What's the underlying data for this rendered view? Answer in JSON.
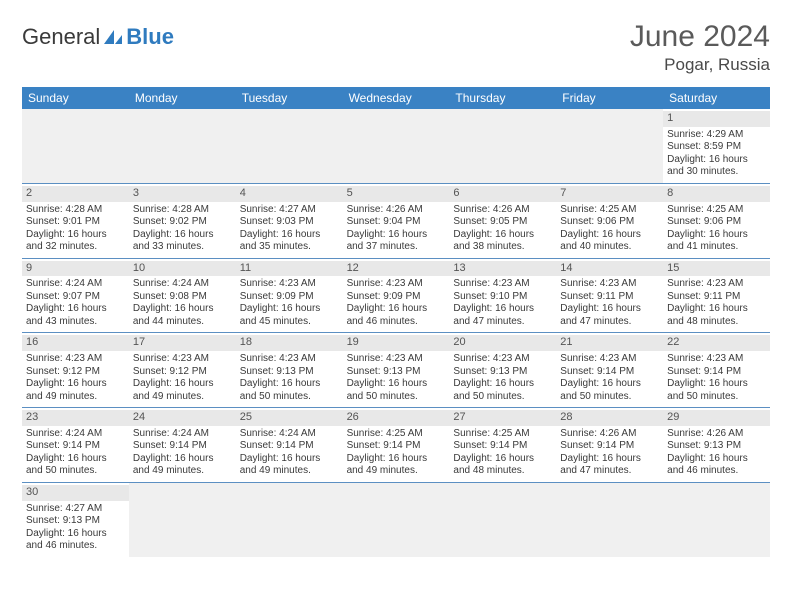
{
  "logo": {
    "text1": "General",
    "text2": "Blue",
    "color_gray": "#3a3a3a",
    "color_blue": "#2f7bbf"
  },
  "header": {
    "month": "June 2024",
    "location": "Pogar, Russia"
  },
  "dayhead_bg": "#3a82c4",
  "dayhead_text": "#ffffff",
  "daynum_bg": "#e8e8e8",
  "empty_bg": "#f0f0f0",
  "week_border": "#5b8fc2",
  "text_color": "#3a3a3a",
  "font_size_body": 10,
  "font_size_dayhead": 12,
  "days_of_week": [
    "Sunday",
    "Monday",
    "Tuesday",
    "Wednesday",
    "Thursday",
    "Friday",
    "Saturday"
  ],
  "weeks": [
    [
      null,
      null,
      null,
      null,
      null,
      null,
      {
        "n": "1",
        "sr": "Sunrise: 4:29 AM",
        "ss": "Sunset: 8:59 PM",
        "d1": "Daylight: 16 hours",
        "d2": "and 30 minutes."
      }
    ],
    [
      {
        "n": "2",
        "sr": "Sunrise: 4:28 AM",
        "ss": "Sunset: 9:01 PM",
        "d1": "Daylight: 16 hours",
        "d2": "and 32 minutes."
      },
      {
        "n": "3",
        "sr": "Sunrise: 4:28 AM",
        "ss": "Sunset: 9:02 PM",
        "d1": "Daylight: 16 hours",
        "d2": "and 33 minutes."
      },
      {
        "n": "4",
        "sr": "Sunrise: 4:27 AM",
        "ss": "Sunset: 9:03 PM",
        "d1": "Daylight: 16 hours",
        "d2": "and 35 minutes."
      },
      {
        "n": "5",
        "sr": "Sunrise: 4:26 AM",
        "ss": "Sunset: 9:04 PM",
        "d1": "Daylight: 16 hours",
        "d2": "and 37 minutes."
      },
      {
        "n": "6",
        "sr": "Sunrise: 4:26 AM",
        "ss": "Sunset: 9:05 PM",
        "d1": "Daylight: 16 hours",
        "d2": "and 38 minutes."
      },
      {
        "n": "7",
        "sr": "Sunrise: 4:25 AM",
        "ss": "Sunset: 9:06 PM",
        "d1": "Daylight: 16 hours",
        "d2": "and 40 minutes."
      },
      {
        "n": "8",
        "sr": "Sunrise: 4:25 AM",
        "ss": "Sunset: 9:06 PM",
        "d1": "Daylight: 16 hours",
        "d2": "and 41 minutes."
      }
    ],
    [
      {
        "n": "9",
        "sr": "Sunrise: 4:24 AM",
        "ss": "Sunset: 9:07 PM",
        "d1": "Daylight: 16 hours",
        "d2": "and 43 minutes."
      },
      {
        "n": "10",
        "sr": "Sunrise: 4:24 AM",
        "ss": "Sunset: 9:08 PM",
        "d1": "Daylight: 16 hours",
        "d2": "and 44 minutes."
      },
      {
        "n": "11",
        "sr": "Sunrise: 4:23 AM",
        "ss": "Sunset: 9:09 PM",
        "d1": "Daylight: 16 hours",
        "d2": "and 45 minutes."
      },
      {
        "n": "12",
        "sr": "Sunrise: 4:23 AM",
        "ss": "Sunset: 9:09 PM",
        "d1": "Daylight: 16 hours",
        "d2": "and 46 minutes."
      },
      {
        "n": "13",
        "sr": "Sunrise: 4:23 AM",
        "ss": "Sunset: 9:10 PM",
        "d1": "Daylight: 16 hours",
        "d2": "and 47 minutes."
      },
      {
        "n": "14",
        "sr": "Sunrise: 4:23 AM",
        "ss": "Sunset: 9:11 PM",
        "d1": "Daylight: 16 hours",
        "d2": "and 47 minutes."
      },
      {
        "n": "15",
        "sr": "Sunrise: 4:23 AM",
        "ss": "Sunset: 9:11 PM",
        "d1": "Daylight: 16 hours",
        "d2": "and 48 minutes."
      }
    ],
    [
      {
        "n": "16",
        "sr": "Sunrise: 4:23 AM",
        "ss": "Sunset: 9:12 PM",
        "d1": "Daylight: 16 hours",
        "d2": "and 49 minutes."
      },
      {
        "n": "17",
        "sr": "Sunrise: 4:23 AM",
        "ss": "Sunset: 9:12 PM",
        "d1": "Daylight: 16 hours",
        "d2": "and 49 minutes."
      },
      {
        "n": "18",
        "sr": "Sunrise: 4:23 AM",
        "ss": "Sunset: 9:13 PM",
        "d1": "Daylight: 16 hours",
        "d2": "and 50 minutes."
      },
      {
        "n": "19",
        "sr": "Sunrise: 4:23 AM",
        "ss": "Sunset: 9:13 PM",
        "d1": "Daylight: 16 hours",
        "d2": "and 50 minutes."
      },
      {
        "n": "20",
        "sr": "Sunrise: 4:23 AM",
        "ss": "Sunset: 9:13 PM",
        "d1": "Daylight: 16 hours",
        "d2": "and 50 minutes."
      },
      {
        "n": "21",
        "sr": "Sunrise: 4:23 AM",
        "ss": "Sunset: 9:14 PM",
        "d1": "Daylight: 16 hours",
        "d2": "and 50 minutes."
      },
      {
        "n": "22",
        "sr": "Sunrise: 4:23 AM",
        "ss": "Sunset: 9:14 PM",
        "d1": "Daylight: 16 hours",
        "d2": "and 50 minutes."
      }
    ],
    [
      {
        "n": "23",
        "sr": "Sunrise: 4:24 AM",
        "ss": "Sunset: 9:14 PM",
        "d1": "Daylight: 16 hours",
        "d2": "and 50 minutes."
      },
      {
        "n": "24",
        "sr": "Sunrise: 4:24 AM",
        "ss": "Sunset: 9:14 PM",
        "d1": "Daylight: 16 hours",
        "d2": "and 49 minutes."
      },
      {
        "n": "25",
        "sr": "Sunrise: 4:24 AM",
        "ss": "Sunset: 9:14 PM",
        "d1": "Daylight: 16 hours",
        "d2": "and 49 minutes."
      },
      {
        "n": "26",
        "sr": "Sunrise: 4:25 AM",
        "ss": "Sunset: 9:14 PM",
        "d1": "Daylight: 16 hours",
        "d2": "and 49 minutes."
      },
      {
        "n": "27",
        "sr": "Sunrise: 4:25 AM",
        "ss": "Sunset: 9:14 PM",
        "d1": "Daylight: 16 hours",
        "d2": "and 48 minutes."
      },
      {
        "n": "28",
        "sr": "Sunrise: 4:26 AM",
        "ss": "Sunset: 9:14 PM",
        "d1": "Daylight: 16 hours",
        "d2": "and 47 minutes."
      },
      {
        "n": "29",
        "sr": "Sunrise: 4:26 AM",
        "ss": "Sunset: 9:13 PM",
        "d1": "Daylight: 16 hours",
        "d2": "and 46 minutes."
      }
    ],
    [
      {
        "n": "30",
        "sr": "Sunrise: 4:27 AM",
        "ss": "Sunset: 9:13 PM",
        "d1": "Daylight: 16 hours",
        "d2": "and 46 minutes."
      },
      null,
      null,
      null,
      null,
      null,
      null
    ]
  ]
}
